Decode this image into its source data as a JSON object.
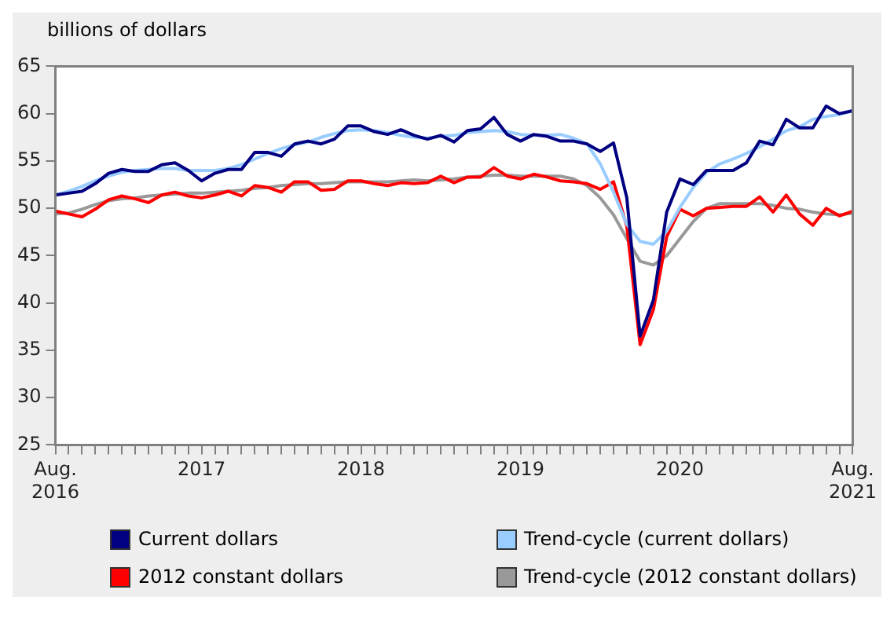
{
  "chart_data": {
    "type": "line",
    "ylabel": "billions of dollars",
    "categories": [
      "Aug. 2016",
      null,
      null,
      null,
      null,
      null,
      null,
      null,
      null,
      null,
      null,
      "2017",
      null,
      null,
      null,
      null,
      null,
      null,
      null,
      null,
      null,
      null,
      null,
      "2018",
      null,
      null,
      null,
      null,
      null,
      null,
      null,
      null,
      null,
      null,
      null,
      "2019",
      null,
      null,
      null,
      null,
      null,
      null,
      null,
      null,
      null,
      null,
      null,
      "2020",
      null,
      null,
      null,
      null,
      null,
      null,
      null,
      null,
      null,
      null,
      null,
      null,
      "Aug. 2021"
    ],
    "ylim": [
      25,
      65
    ],
    "yticks": [
      25,
      30,
      35,
      40,
      45,
      50,
      55,
      60,
      65
    ],
    "legend": "bottom",
    "marker": "none",
    "line_style": "solid",
    "series": [
      {
        "name": "Current dollars",
        "color": "#000080",
        "values": [
          51.4,
          51.6,
          51.8,
          52.6,
          53.7,
          54.1,
          53.9,
          53.9,
          54.6,
          54.8,
          54.0,
          52.9,
          53.7,
          54.1,
          54.1,
          55.9,
          55.9,
          55.5,
          56.8,
          57.1,
          56.8,
          57.3,
          58.7,
          58.7,
          58.1,
          57.8,
          58.3,
          57.7,
          57.3,
          57.7,
          57.0,
          58.2,
          58.4,
          59.6,
          57.8,
          57.1,
          57.8,
          57.6,
          57.1,
          57.1,
          56.8,
          56.0,
          56.9,
          51.1,
          36.5,
          40.3,
          49.6,
          53.1,
          52.5,
          54.0,
          54.0,
          54.0,
          54.8,
          57.1,
          56.7,
          59.4,
          58.5,
          58.5,
          60.8,
          60.0,
          60.3
        ]
      },
      {
        "name": "Trend-cycle (current dollars)",
        "color": "#99ccff",
        "values": [
          51.4,
          51.8,
          52.3,
          52.9,
          53.4,
          53.8,
          54.0,
          54.1,
          54.2,
          54.2,
          54.0,
          54.0,
          54.0,
          54.2,
          54.6,
          55.2,
          55.8,
          56.3,
          56.7,
          57.0,
          57.5,
          57.9,
          58.2,
          58.3,
          58.2,
          58.0,
          57.7,
          57.5,
          57.4,
          57.6,
          57.7,
          58.0,
          58.1,
          58.2,
          58.1,
          57.8,
          57.7,
          57.7,
          57.8,
          57.4,
          56.8,
          54.7,
          51.7,
          48.3,
          46.5,
          46.2,
          47.6,
          50.1,
          52.2,
          53.8,
          54.7,
          55.2,
          55.8,
          56.5,
          57.3,
          58.2,
          58.6,
          59.4,
          59.7,
          59.9,
          60.3
        ]
      },
      {
        "name": "2012 constant dollars",
        "color": "#ff0000",
        "values": [
          49.7,
          49.4,
          49.1,
          49.9,
          50.9,
          51.3,
          51.0,
          50.6,
          51.4,
          51.7,
          51.3,
          51.1,
          51.4,
          51.8,
          51.3,
          52.4,
          52.2,
          51.7,
          52.8,
          52.8,
          51.9,
          52.0,
          52.9,
          52.9,
          52.6,
          52.4,
          52.7,
          52.6,
          52.7,
          53.4,
          52.7,
          53.3,
          53.3,
          54.3,
          53.4,
          53.1,
          53.6,
          53.3,
          52.9,
          52.8,
          52.6,
          52.0,
          52.8,
          48.1,
          35.6,
          39.3,
          47.0,
          49.9,
          49.2,
          50.0,
          50.1,
          50.2,
          50.2,
          51.2,
          49.6,
          51.4,
          49.4,
          48.2,
          50.0,
          49.2,
          49.7
        ]
      },
      {
        "name": "Trend-cycle (2012 constant dollars)",
        "color": "#999999",
        "values": [
          49.4,
          49.5,
          49.9,
          50.4,
          50.8,
          51.0,
          51.1,
          51.3,
          51.4,
          51.5,
          51.6,
          51.6,
          51.7,
          51.8,
          51.9,
          52.1,
          52.2,
          52.4,
          52.5,
          52.6,
          52.6,
          52.7,
          52.8,
          52.8,
          52.8,
          52.8,
          52.9,
          53.0,
          52.9,
          53.0,
          53.1,
          53.3,
          53.4,
          53.5,
          53.5,
          53.4,
          53.4,
          53.4,
          53.4,
          53.1,
          52.4,
          51.1,
          49.3,
          46.8,
          44.4,
          44.0,
          45.0,
          46.8,
          48.6,
          50.0,
          50.5,
          50.5,
          50.5,
          50.5,
          50.3,
          50.0,
          49.9,
          49.6,
          49.4,
          49.3,
          49.5
        ]
      }
    ]
  }
}
